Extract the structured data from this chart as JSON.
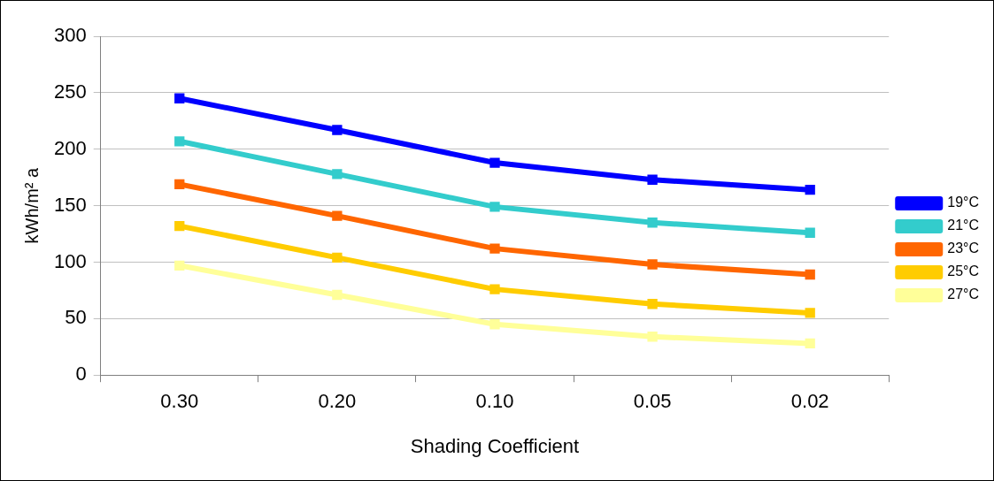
{
  "chart_data": {
    "type": "line",
    "xlabel": "Shading Coefficient",
    "ylabel": "kWh/m² a",
    "categories": [
      "0.30",
      "0.20",
      "0.10",
      "0.05",
      "0.02"
    ],
    "series": [
      {
        "name": "19°C",
        "color": "#0000ff",
        "values": [
          245,
          217,
          188,
          173,
          164
        ]
      },
      {
        "name": "21°C",
        "color": "#33cccc",
        "values": [
          207,
          178,
          149,
          135,
          126
        ]
      },
      {
        "name": "23°C",
        "color": "#ff6600",
        "values": [
          169,
          141,
          112,
          98,
          89
        ]
      },
      {
        "name": "25°C",
        "color": "#ffcc00",
        "values": [
          132,
          104,
          76,
          63,
          55
        ]
      },
      {
        "name": "27°C",
        "color": "#ffff99",
        "values": [
          97,
          71,
          45,
          34,
          28
        ]
      }
    ],
    "ylim": [
      0,
      300
    ],
    "yticks": [
      0,
      50,
      100,
      150,
      200,
      250,
      300
    ],
    "grid": "y",
    "legend": "right",
    "marker": "square",
    "line_style": "solid"
  }
}
